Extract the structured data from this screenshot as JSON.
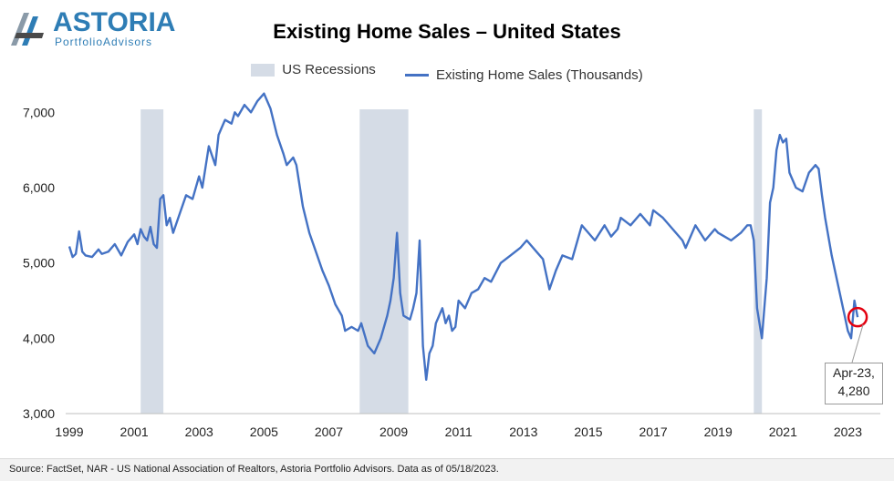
{
  "logo": {
    "word": "ASTORIA",
    "sub": "PortfolioAdvisors"
  },
  "colors": {
    "line": "#4472c4",
    "recession": "#d5dce6",
    "logo": "#2e7db5",
    "marker": "#e3000f"
  },
  "footer": {
    "source": "Source: FactSet, NAR - US National Association of Realtors, Astoria Portfolio Advisors. Data as of 05/18/2023."
  },
  "callout": {
    "line1": "Apr-23,",
    "line2": "4,280"
  },
  "chart_data": {
    "type": "line",
    "title": "Existing Home Sales – United States",
    "xlabel": "",
    "ylabel": "",
    "ylim": [
      3000,
      7500
    ],
    "xlim": [
      1999,
      2024
    ],
    "y_ticks": [
      3000,
      4000,
      5000,
      6000,
      7000
    ],
    "y_tick_labels": [
      "3,000",
      "4,000",
      "5,000",
      "6,000",
      "7,000"
    ],
    "x_ticks": [
      1999,
      2001,
      2003,
      2005,
      2007,
      2009,
      2011,
      2013,
      2015,
      2017,
      2019,
      2021,
      2023
    ],
    "x_tick_labels": [
      "1999",
      "2001",
      "2003",
      "2005",
      "2007",
      "2009",
      "2011",
      "2013",
      "2015",
      "2017",
      "2019",
      "2021",
      "2023"
    ],
    "grid": false,
    "legend_position": "top-center",
    "legend": [
      "US Recessions",
      "Existing Home Sales (Thousands)"
    ],
    "recessions": [
      {
        "start": 2001.2,
        "end": 2001.9
      },
      {
        "start": 2007.95,
        "end": 2009.45
      },
      {
        "start": 2020.1,
        "end": 2020.35
      }
    ],
    "series": [
      {
        "name": "Existing Home Sales (Thousands)",
        "x": [
          1999.0,
          1999.1,
          1999.2,
          1999.3,
          1999.4,
          1999.5,
          1999.7,
          1999.9,
          2000.0,
          2000.2,
          2000.4,
          2000.6,
          2000.8,
          2001.0,
          2001.1,
          2001.2,
          2001.3,
          2001.4,
          2001.5,
          2001.6,
          2001.7,
          2001.8,
          2001.9,
          2002.0,
          2002.1,
          2002.2,
          2002.4,
          2002.6,
          2002.8,
          2003.0,
          2003.1,
          2003.3,
          2003.5,
          2003.6,
          2003.7,
          2003.8,
          2004.0,
          2004.1,
          2004.2,
          2004.4,
          2004.6,
          2004.8,
          2005.0,
          2005.1,
          2005.2,
          2005.4,
          2005.6,
          2005.7,
          2005.9,
          2006.0,
          2006.2,
          2006.4,
          2006.6,
          2006.8,
          2007.0,
          2007.2,
          2007.4,
          2007.5,
          2007.7,
          2007.9,
          2008.0,
          2008.2,
          2008.4,
          2008.6,
          2008.8,
          2008.9,
          2009.0,
          2009.1,
          2009.2,
          2009.3,
          2009.5,
          2009.6,
          2009.7,
          2009.8,
          2009.9,
          2010.0,
          2010.1,
          2010.2,
          2010.3,
          2010.4,
          2010.5,
          2010.6,
          2010.7,
          2010.8,
          2010.9,
          2011.0,
          2011.2,
          2011.4,
          2011.6,
          2011.8,
          2012.0,
          2012.3,
          2012.6,
          2012.9,
          2013.1,
          2013.4,
          2013.6,
          2013.8,
          2014.0,
          2014.2,
          2014.5,
          2014.8,
          2015.0,
          2015.2,
          2015.5,
          2015.7,
          2015.9,
          2016.0,
          2016.3,
          2016.6,
          2016.9,
          2017.0,
          2017.3,
          2017.6,
          2017.9,
          2018.0,
          2018.3,
          2018.6,
          2018.9,
          2019.0,
          2019.2,
          2019.4,
          2019.7,
          2019.9,
          2020.0,
          2020.1,
          2020.2,
          2020.35,
          2020.5,
          2020.6,
          2020.7,
          2020.8,
          2020.9,
          2021.0,
          2021.1,
          2021.2,
          2021.4,
          2021.6,
          2021.8,
          2022.0,
          2022.1,
          2022.2,
          2022.3,
          2022.5,
          2022.7,
          2022.9,
          2023.0,
          2023.1,
          2023.2,
          2023.3
        ],
        "values": [
          5220,
          5080,
          5120,
          5420,
          5150,
          5100,
          5080,
          5180,
          5120,
          5150,
          5250,
          5100,
          5280,
          5380,
          5250,
          5450,
          5350,
          5300,
          5480,
          5250,
          5200,
          5850,
          5900,
          5500,
          5600,
          5400,
          5650,
          5900,
          5850,
          6150,
          6000,
          6550,
          6300,
          6700,
          6800,
          6900,
          6850,
          7000,
          6950,
          7100,
          7000,
          7150,
          7250,
          7150,
          7050,
          6700,
          6450,
          6300,
          6400,
          6300,
          5750,
          5400,
          5150,
          4900,
          4700,
          4450,
          4300,
          4100,
          4150,
          4100,
          4200,
          3900,
          3800,
          4000,
          4300,
          4500,
          4800,
          5400,
          4600,
          4300,
          4250,
          4400,
          4600,
          5300,
          3900,
          3450,
          3800,
          3900,
          4200,
          4300,
          4400,
          4200,
          4300,
          4100,
          4150,
          4500,
          4400,
          4600,
          4650,
          4800,
          4750,
          5000,
          5100,
          5200,
          5300,
          5150,
          5050,
          4650,
          4900,
          5100,
          5050,
          5500,
          5400,
          5300,
          5500,
          5350,
          5450,
          5600,
          5500,
          5650,
          5500,
          5700,
          5600,
          5450,
          5300,
          5200,
          5500,
          5300,
          5450,
          5400,
          5350,
          5300,
          5400,
          5500,
          5500,
          5300,
          4400,
          4000,
          4800,
          5800,
          6000,
          6500,
          6700,
          6600,
          6650,
          6200,
          6000,
          5950,
          6200,
          6300,
          6250,
          5900,
          5600,
          5100,
          4700,
          4300,
          4100,
          4000,
          4500,
          4280
        ]
      }
    ]
  }
}
